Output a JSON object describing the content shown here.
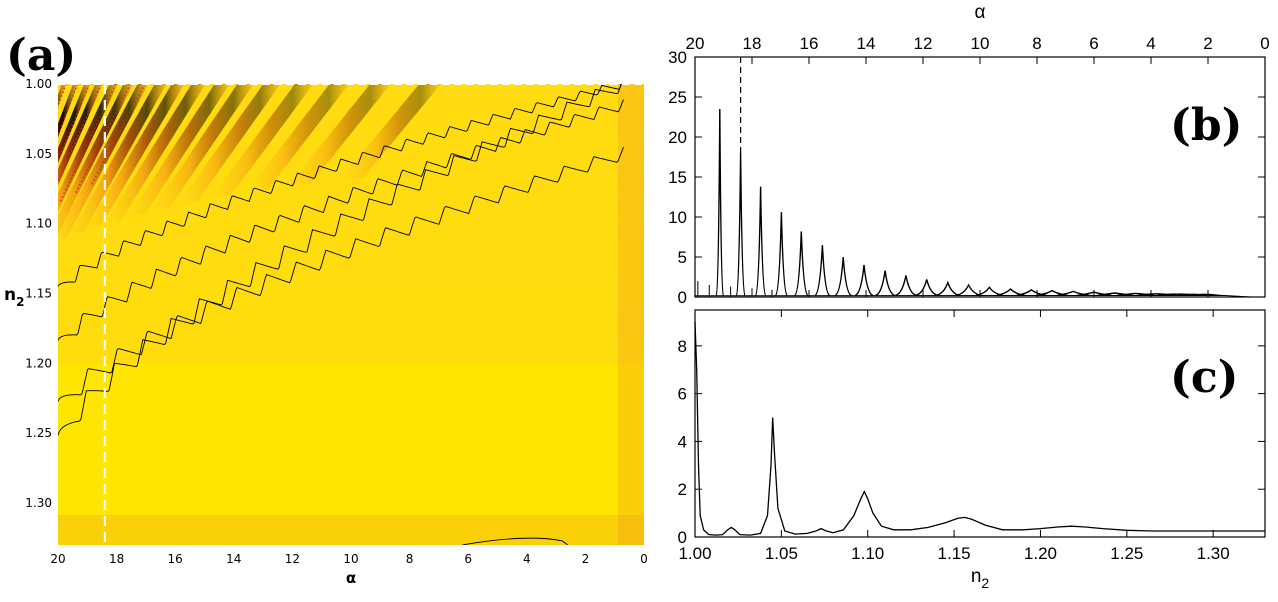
{
  "panels": {
    "a": "(a)",
    "b": "(b)",
    "c": "(c)"
  },
  "colors": {
    "background": "#ffe600",
    "light": "#ffd21e",
    "orange": "#f08c14",
    "dark_red": "#7a0e00",
    "black": "#000000",
    "red_dots": "#e02010",
    "marker": "#ffffff"
  },
  "chart_data": [
    {
      "type": "heatmap",
      "panel": "a",
      "xlabel": "α",
      "ylabel_main": "n",
      "ylabel_sub": "2",
      "xlim": [
        20,
        0
      ],
      "ylim": [
        1.33,
        1.0
      ],
      "x_ticks": [
        "20",
        "18",
        "16",
        "14",
        "12",
        "10",
        "8",
        "6",
        "4",
        "2",
        "0"
      ],
      "y_ticks": [
        "1.00",
        "1.05",
        "1.10",
        "1.15",
        "1.20",
        "1.25",
        "1.30"
      ],
      "marker_alpha": 18.4,
      "fringes_alpha_at_top": [
        19.8,
        19.4,
        19.0,
        18.6,
        18.1,
        17.6,
        17.1,
        16.5,
        15.9,
        15.2,
        14.4,
        13.6,
        12.7,
        11.6,
        10.4,
        9.0,
        7.3
      ]
    },
    {
      "type": "line",
      "panel": "b",
      "xlabel": "α",
      "xlim": [
        20,
        0
      ],
      "ylim": [
        0,
        30
      ],
      "x_ticks": [
        "20",
        "18",
        "16",
        "14",
        "12",
        "10",
        "8",
        "6",
        "4",
        "2",
        "0"
      ],
      "y_ticks": [
        "0",
        "5",
        "10",
        "15",
        "20",
        "25",
        "30"
      ],
      "dashed_alpha": 18.4,
      "peaks": [
        {
          "x": 19.13,
          "y": 23.5
        },
        {
          "x": 18.4,
          "y": 18.0
        },
        {
          "x": 17.7,
          "y": 13.8
        },
        {
          "x": 16.97,
          "y": 10.6
        },
        {
          "x": 16.27,
          "y": 8.2
        },
        {
          "x": 15.53,
          "y": 6.5
        },
        {
          "x": 14.8,
          "y": 5.0
        },
        {
          "x": 14.07,
          "y": 4.0
        },
        {
          "x": 13.33,
          "y": 3.3
        },
        {
          "x": 12.6,
          "y": 2.7
        },
        {
          "x": 11.87,
          "y": 2.2
        },
        {
          "x": 11.13,
          "y": 1.8
        },
        {
          "x": 10.4,
          "y": 1.5
        },
        {
          "x": 9.67,
          "y": 1.2
        },
        {
          "x": 8.93,
          "y": 1.0
        },
        {
          "x": 8.2,
          "y": 0.9
        },
        {
          "x": 7.47,
          "y": 0.8
        },
        {
          "x": 6.73,
          "y": 0.7
        },
        {
          "x": 6.0,
          "y": 0.6
        },
        {
          "x": 5.27,
          "y": 0.5
        },
        {
          "x": 4.53,
          "y": 0.45
        },
        {
          "x": 3.8,
          "y": 0.4
        },
        {
          "x": 3.07,
          "y": 0.35
        },
        {
          "x": 2.33,
          "y": 0.3
        }
      ],
      "minor_peaks": [
        {
          "x": 19.9,
          "y": 2.0
        },
        {
          "x": 19.5,
          "y": 1.5
        },
        {
          "x": 18.75,
          "y": 1.3
        },
        {
          "x": 18.0,
          "y": 1.1
        },
        {
          "x": 17.3,
          "y": 0.9
        }
      ]
    },
    {
      "type": "line",
      "panel": "c",
      "xlabel_main": "n",
      "xlabel_sub": "2",
      "xlim": [
        1.0,
        1.33
      ],
      "ylim": [
        0,
        9.5
      ],
      "x_ticks": [
        "1.00",
        "1.05",
        "1.10",
        "1.15",
        "1.20",
        "1.25",
        "1.30"
      ],
      "x_tick_values": [
        1.0,
        1.05,
        1.1,
        1.15,
        1.2,
        1.25,
        1.3
      ],
      "y_ticks": [
        "0",
        "2",
        "4",
        "6",
        "8"
      ],
      "x": [
        1.0,
        1.001,
        1.002,
        1.003,
        1.005,
        1.008,
        1.012,
        1.016,
        1.019,
        1.021,
        1.023,
        1.026,
        1.032,
        1.038,
        1.042,
        1.044,
        1.045,
        1.046,
        1.048,
        1.052,
        1.058,
        1.065,
        1.07,
        1.073,
        1.076,
        1.08,
        1.086,
        1.092,
        1.096,
        1.098,
        1.1,
        1.103,
        1.108,
        1.115,
        1.125,
        1.135,
        1.145,
        1.152,
        1.156,
        1.16,
        1.168,
        1.178,
        1.19,
        1.2,
        1.21,
        1.218,
        1.226,
        1.236,
        1.25,
        1.265,
        1.28,
        1.3,
        1.32,
        1.33
      ],
      "y": [
        9.0,
        7.0,
        3.0,
        0.9,
        0.3,
        0.1,
        0.08,
        0.1,
        0.3,
        0.4,
        0.3,
        0.1,
        0.08,
        0.15,
        0.9,
        3.0,
        5.0,
        3.5,
        1.2,
        0.25,
        0.12,
        0.15,
        0.25,
        0.35,
        0.25,
        0.18,
        0.3,
        0.9,
        1.6,
        1.9,
        1.6,
        1.0,
        0.45,
        0.3,
        0.3,
        0.4,
        0.6,
        0.78,
        0.82,
        0.75,
        0.5,
        0.3,
        0.3,
        0.35,
        0.42,
        0.45,
        0.42,
        0.35,
        0.28,
        0.25,
        0.25,
        0.25,
        0.25,
        0.25
      ]
    }
  ]
}
